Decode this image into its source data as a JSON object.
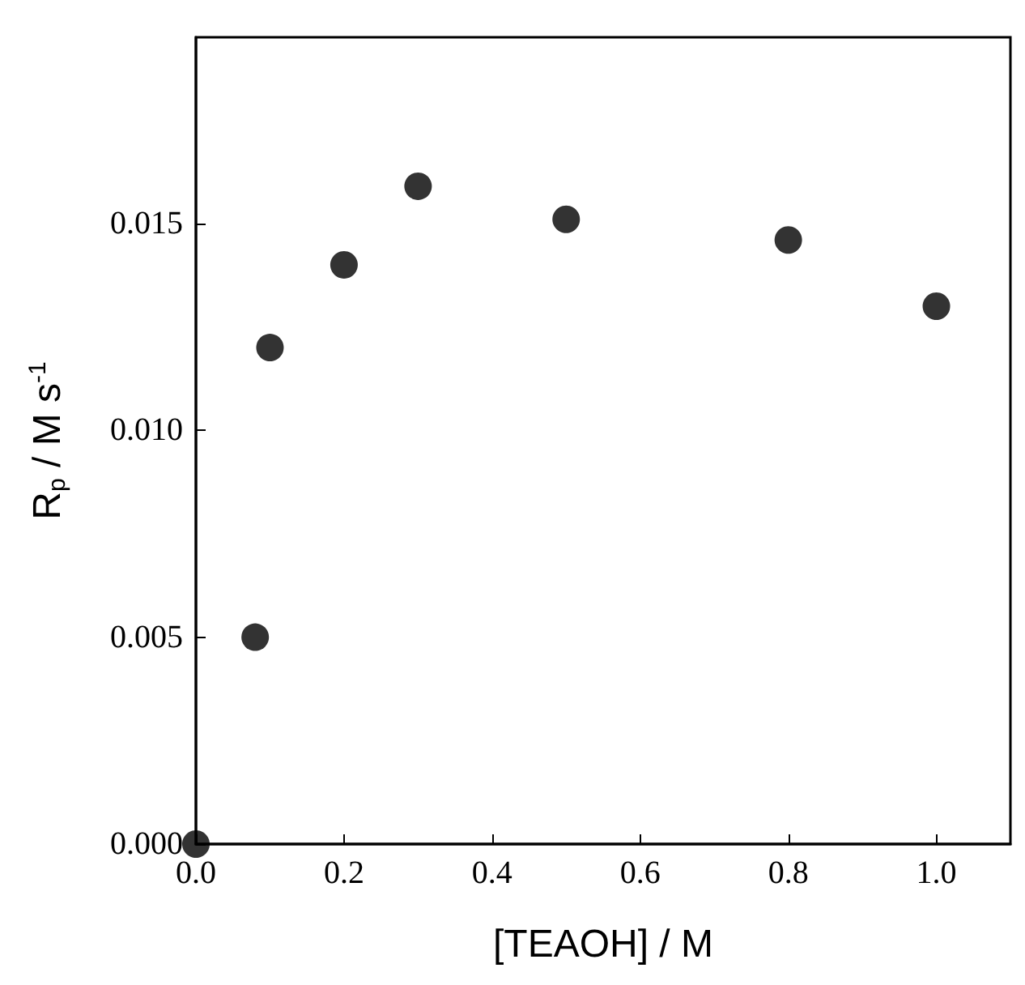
{
  "chart_data": {
    "type": "scatter",
    "xlabel": "[TEAOH] / M",
    "ylabel": "R$_{p}$ / M s$^{-1}$",
    "x": [
      0,
      0.08,
      0.1,
      0.2,
      0.3,
      0.5,
      0.8,
      1.0
    ],
    "series": [
      {
        "color": "#000000",
        "values": [
          0,
          0.005,
          0.012,
          0.014,
          0.0159,
          0.0151,
          0.0146,
          0.013
        ]
      }
    ],
    "xlim": [
      0,
      1.1
    ],
    "xticks": [
      {
        "value": 0,
        "label": "0.0"
      },
      {
        "value": 0.2,
        "label": "0.2"
      },
      {
        "value": 0.4,
        "label": "0.4"
      },
      {
        "value": 0.6,
        "label": "0.6"
      },
      {
        "value": 0.8,
        "label": "0.8"
      },
      {
        "value": 1.0,
        "label": "1.0"
      }
    ],
    "ylim": [
      0,
      0.0195
    ],
    "yticks": [
      {
        "value": 0,
        "label": "0.000"
      },
      {
        "value": 0.005,
        "label": "0.005"
      },
      {
        "value": 0.01,
        "label": "0.010"
      },
      {
        "value": 0.015,
        "label": "0.015"
      }
    ],
    "grid": false,
    "marker": "circle"
  }
}
